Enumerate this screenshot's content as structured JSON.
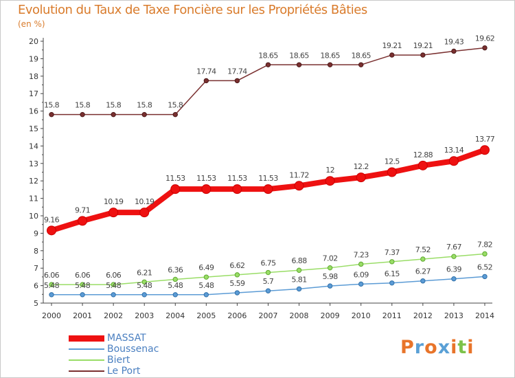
{
  "chart_data": {
    "type": "line",
    "title": "Evolution du Taux de Taxe Foncière sur les Propriétés Bâties",
    "ylabel": "(en %)",
    "xlabel": "",
    "ylim": [
      5,
      20
    ],
    "yticks": [
      "5",
      "6",
      "7",
      "8",
      "9",
      "10",
      "11",
      "12",
      "13",
      "14",
      "15",
      "16",
      "17",
      "18",
      "19",
      "20"
    ],
    "categories": [
      "2000",
      "2001",
      "2002",
      "2003",
      "2004",
      "2005",
      "2006",
      "2007",
      "2008",
      "2009",
      "2010",
      "2011",
      "2012",
      "2013",
      "2014"
    ],
    "series": [
      {
        "name": "MASSAT",
        "color": "#ee1111",
        "values": [
          9.16,
          9.71,
          10.19,
          10.19,
          11.53,
          11.53,
          11.53,
          11.53,
          11.72,
          12,
          12.2,
          12.5,
          12.88,
          13.14,
          13.77
        ],
        "labels": [
          "9.16",
          "9.71",
          "10.19",
          "10.19",
          "11.53",
          "11.53",
          "11.53",
          "11.53",
          "11.72",
          "12",
          "12.2",
          "12.5",
          "12.88",
          "13.14",
          "13.77"
        ]
      },
      {
        "name": "Boussenac",
        "color": "#5b9bd5",
        "values": [
          5.48,
          5.48,
          5.48,
          5.48,
          5.48,
          5.48,
          5.59,
          5.7,
          5.81,
          5.98,
          6.09,
          6.15,
          6.27,
          6.39,
          6.52
        ],
        "labels": [
          "5.48",
          "5.48",
          "5.48",
          "5.48",
          "5.48",
          "5.48",
          "5.59",
          "5.7",
          "5.81",
          "5.98",
          "6.09",
          "6.15",
          "6.27",
          "6.39",
          "6.52"
        ]
      },
      {
        "name": "Biert",
        "color": "#99dd66",
        "values": [
          6.06,
          6.06,
          6.06,
          6.21,
          6.36,
          6.49,
          6.62,
          6.75,
          6.88,
          7.02,
          7.23,
          7.37,
          7.52,
          7.67,
          7.82
        ],
        "labels": [
          "6.06",
          "6.06",
          "6.06",
          "6.21",
          "6.36",
          "6.49",
          "6.62",
          "6.75",
          "6.88",
          "7.02",
          "7.23",
          "7.37",
          "7.52",
          "7.67",
          "7.82"
        ]
      },
      {
        "name": "Le Port",
        "color": "#7a3030",
        "values": [
          15.8,
          15.8,
          15.8,
          15.8,
          15.8,
          17.74,
          17.74,
          18.65,
          18.65,
          18.65,
          18.65,
          19.21,
          19.21,
          19.43,
          19.62
        ],
        "labels": [
          "15.8",
          "15.8",
          "15.8",
          "15.8",
          "15.8",
          "17.74",
          "17.74",
          "18.65",
          "18.65",
          "18.65",
          "18.65",
          "19.21",
          "19.21",
          "19.43",
          "19.62"
        ]
      }
    ],
    "legend": {
      "placement": "bottom-left"
    },
    "grid": false
  },
  "logo": {
    "letters": [
      "P",
      "r",
      "o",
      "x",
      "i",
      "t",
      "i"
    ],
    "colors": [
      "#e8742a",
      "#5aa0d6",
      "#e8742a",
      "#5aa0d6",
      "#e8742a",
      "#7cc24a",
      "#e8742a"
    ]
  }
}
